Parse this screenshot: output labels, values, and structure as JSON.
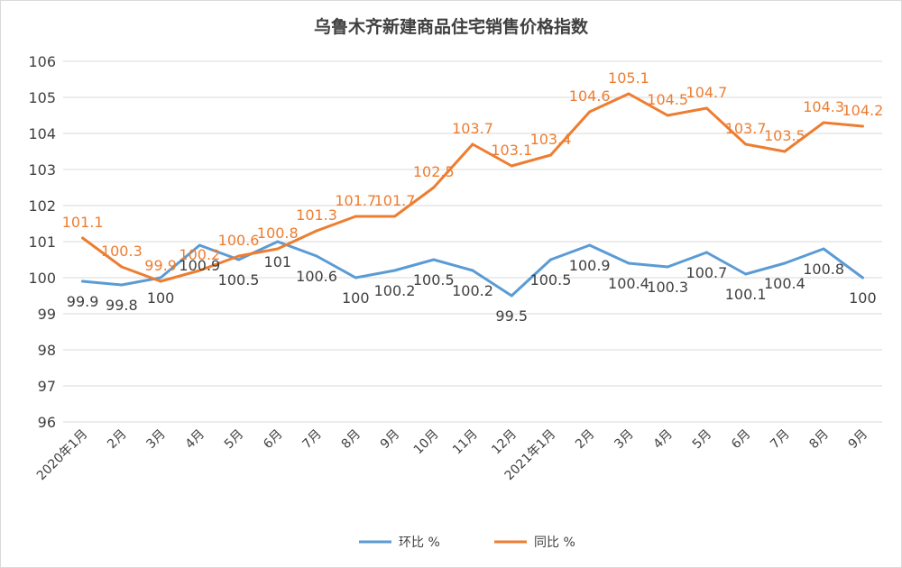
{
  "chart_data": {
    "type": "line",
    "title": "乌鲁木齐新建商品住宅销售价格指数",
    "categories": [
      "2020年1月",
      "2月",
      "3月",
      "4月",
      "5月",
      "6月",
      "7月",
      "8月",
      "9月",
      "10月",
      "11月",
      "12月",
      "2021年1月",
      "2月",
      "3月",
      "4月",
      "5月",
      "6月",
      "7月",
      "8月",
      "9月"
    ],
    "ylim": [
      96,
      106
    ],
    "yticks": [
      96,
      97,
      98,
      99,
      100,
      101,
      102,
      103,
      104,
      105,
      106
    ],
    "grid": true,
    "legend_position": "bottom",
    "series": [
      {
        "name": "环比 %",
        "color": "#5b9bd5",
        "values": [
          99.9,
          99.8,
          100,
          100.9,
          100.5,
          101,
          100.6,
          100,
          100.2,
          100.5,
          100.2,
          99.5,
          100.5,
          100.9,
          100.4,
          100.3,
          100.7,
          100.1,
          100.4,
          100.8,
          100
        ],
        "labels": [
          "99.9",
          "99.8",
          "100",
          "100.9",
          "100.5",
          "101",
          "100.6",
          "100",
          "100.2",
          "100.5",
          "100.2",
          "99.5",
          "100.5",
          "100.9",
          "100.4",
          "100.3",
          "100.7",
          "100.1",
          "100.4",
          "100.8",
          "100"
        ]
      },
      {
        "name": "同比 %",
        "color": "#ed7d31",
        "values": [
          101.1,
          100.3,
          99.9,
          100.2,
          100.6,
          100.8,
          101.3,
          101.7,
          101.7,
          102.5,
          103.7,
          103.1,
          103.4,
          104.6,
          105.1,
          104.5,
          104.7,
          103.7,
          103.5,
          104.3,
          104.2
        ],
        "labels": [
          "101.1",
          "100.3",
          "99.9",
          "100.2",
          "100.6",
          "100.8",
          "101.3",
          "101.7",
          "101.7",
          "102.5",
          "103.7",
          "103.1",
          "103.4",
          "104.6",
          "105.1",
          "104.5",
          "104.7",
          "103.7",
          "103.5",
          "104.3",
          "104.2"
        ]
      }
    ]
  }
}
